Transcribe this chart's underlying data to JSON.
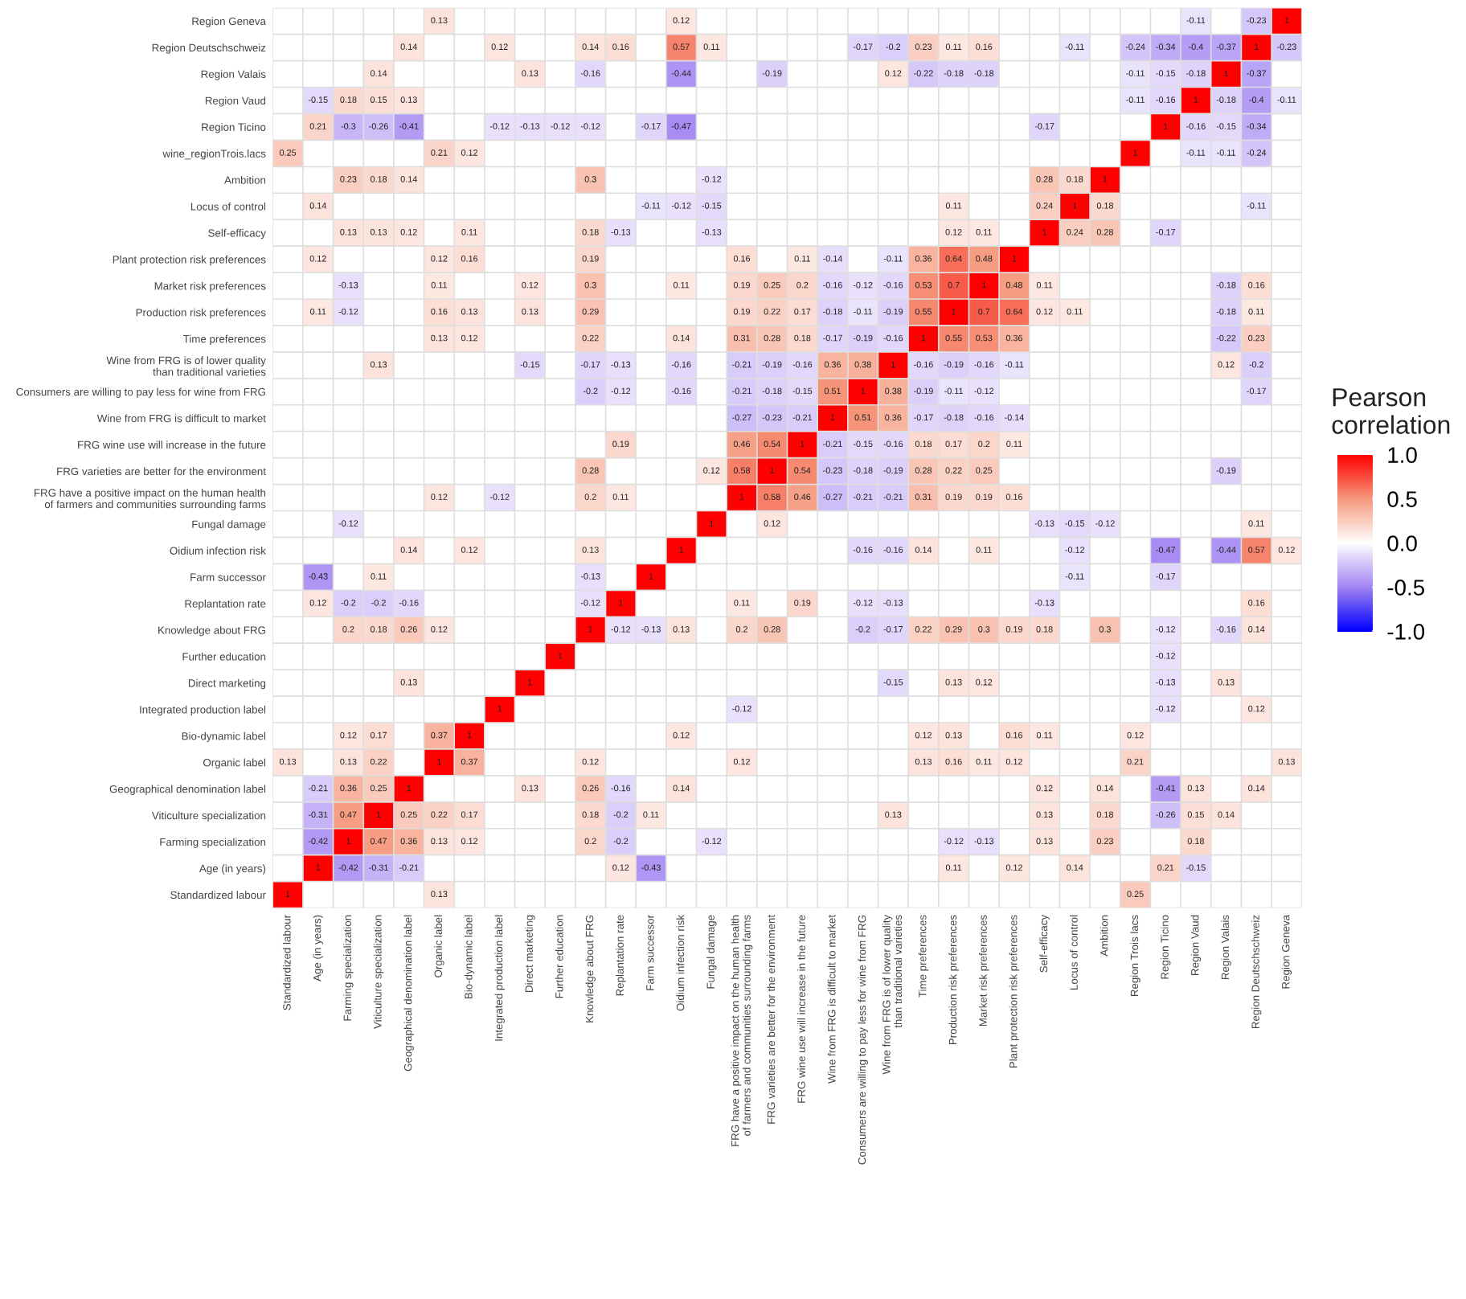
{
  "chart_data": {
    "type": "heatmap",
    "categories": [
      "Standardized labour",
      "Age (in years)",
      "Farming specialization",
      "Viticulture specialization",
      "Geographical denomination label",
      "Organic label",
      "Bio-dynamic label",
      "Integrated production label",
      "Direct marketing",
      "Further education",
      "Knowledge about FRG",
      "Replantation rate",
      "Farm successor",
      "Oidium infection risk",
      "Fungal damage",
      "FRG have a positive impact on the human health\nof farmers and communities surrounding farms",
      "FRG varieties are better for the environment",
      "FRG wine use will increase in the future",
      "Wine from FRG is difficult to market",
      "Consumers are willing to pay less for wine from FRG",
      "Wine from FRG is of lower quality\nthan traditional varieties",
      "Time preferences",
      "Production risk preferences",
      "Market risk preferences",
      "Plant protection risk preferences",
      "Self-efficacy",
      "Locus of control",
      "Ambition",
      "Region Trois lacs",
      "Region Ticino",
      "Region Vaud",
      "Region Valais",
      "Region Deutschschweiz",
      "Region Geneva"
    ],
    "y_categories": [
      "Region Geneva",
      "Region Deutschschweiz",
      "Region Valais",
      "Region Vaud",
      "Region Ticino",
      "wine_regionTrois.lacs",
      "Ambition",
      "Locus of control",
      "Self-efficacy",
      "Plant protection risk preferences",
      "Market risk preferences",
      "Production risk preferences",
      "Time preferences",
      "Wine from FRG is of lower quality\nthan traditional varieties",
      "Consumers are willing to pay less for wine from FRG",
      "Wine from FRG is difficult to market",
      "FRG wine use will increase in the future",
      "FRG varieties are better for the environment",
      "FRG have a positive impact on the human health\nof farmers and communities surrounding farms",
      "Fungal damage",
      "Oidium infection risk",
      "Farm successor",
      "Replantation rate",
      "Knowledge about FRG",
      "Further education",
      "Direct marketing",
      "Integrated production label",
      "Bio-dynamic label",
      "Organic label",
      "Geographical denomination label",
      "Viticulture specialization",
      "Farming specialization",
      "Age (in years)",
      "Standardized labour"
    ],
    "cells": [
      [
        null,
        null,
        null,
        null,
        null,
        0.13,
        null,
        null,
        null,
        null,
        null,
        null,
        null,
        0.12,
        null,
        null,
        null,
        null,
        null,
        null,
        null,
        null,
        null,
        null,
        null,
        null,
        null,
        null,
        null,
        null,
        -0.11,
        null,
        -0.23,
        1
      ],
      [
        null,
        null,
        null,
        null,
        0.14,
        null,
        null,
        0.12,
        null,
        null,
        0.14,
        0.16,
        null,
        0.57,
        0.11,
        null,
        null,
        null,
        null,
        -0.17,
        -0.2,
        0.23,
        0.11,
        0.16,
        null,
        null,
        -0.11,
        null,
        -0.24,
        -0.34,
        -0.4,
        -0.37,
        1,
        -0.23
      ],
      [
        null,
        null,
        null,
        0.14,
        null,
        null,
        null,
        null,
        0.13,
        null,
        -0.16,
        null,
        null,
        -0.44,
        null,
        null,
        -0.19,
        null,
        null,
        null,
        0.12,
        -0.22,
        -0.18,
        -0.18,
        null,
        null,
        null,
        null,
        -0.11,
        -0.15,
        -0.18,
        1,
        -0.37,
        null
      ],
      [
        null,
        -0.15,
        0.18,
        0.15,
        0.13,
        null,
        null,
        null,
        null,
        null,
        null,
        null,
        null,
        null,
        null,
        null,
        null,
        null,
        null,
        null,
        null,
        null,
        null,
        null,
        null,
        null,
        null,
        null,
        -0.11,
        -0.16,
        1,
        -0.18,
        -0.4,
        -0.11
      ],
      [
        null,
        0.21,
        -0.3,
        -0.26,
        -0.41,
        null,
        null,
        -0.12,
        -0.13,
        -0.12,
        -0.12,
        null,
        -0.17,
        -0.47,
        null,
        null,
        null,
        null,
        null,
        null,
        null,
        null,
        null,
        null,
        null,
        -0.17,
        null,
        null,
        null,
        1,
        -0.16,
        -0.15,
        -0.34,
        null
      ],
      [
        0.25,
        null,
        null,
        null,
        null,
        0.21,
        0.12,
        null,
        null,
        null,
        null,
        null,
        null,
        null,
        null,
        null,
        null,
        null,
        null,
        null,
        null,
        null,
        null,
        null,
        null,
        null,
        null,
        null,
        1,
        null,
        -0.11,
        -0.11,
        -0.24,
        null
      ],
      [
        null,
        null,
        0.23,
        0.18,
        0.14,
        null,
        null,
        null,
        null,
        null,
        0.3,
        null,
        null,
        null,
        -0.12,
        null,
        null,
        null,
        null,
        null,
        null,
        null,
        null,
        null,
        null,
        0.28,
        0.18,
        1,
        null,
        null,
        null,
        null,
        null,
        null
      ],
      [
        null,
        0.14,
        null,
        null,
        null,
        null,
        null,
        null,
        null,
        null,
        null,
        null,
        -0.11,
        -0.12,
        -0.15,
        null,
        null,
        null,
        null,
        null,
        null,
        null,
        0.11,
        null,
        null,
        0.24,
        1,
        0.18,
        null,
        null,
        null,
        null,
        -0.11,
        null
      ],
      [
        null,
        null,
        0.13,
        0.13,
        0.12,
        null,
        0.11,
        null,
        null,
        null,
        0.18,
        -0.13,
        null,
        null,
        -0.13,
        null,
        null,
        null,
        null,
        null,
        null,
        null,
        0.12,
        0.11,
        null,
        1,
        0.24,
        0.28,
        null,
        -0.17,
        null,
        null,
        null,
        null
      ],
      [
        null,
        0.12,
        null,
        null,
        null,
        0.12,
        0.16,
        null,
        null,
        null,
        0.19,
        null,
        null,
        null,
        null,
        0.16,
        null,
        0.11,
        -0.14,
        null,
        -0.11,
        0.36,
        0.64,
        0.48,
        1,
        null,
        null,
        null,
        null,
        null,
        null,
        null,
        null,
        null
      ],
      [
        null,
        null,
        -0.13,
        null,
        null,
        0.11,
        null,
        null,
        0.12,
        null,
        0.3,
        null,
        null,
        0.11,
        null,
        0.19,
        0.25,
        0.2,
        -0.16,
        -0.12,
        -0.16,
        0.53,
        0.7,
        1,
        0.48,
        0.11,
        null,
        null,
        null,
        null,
        null,
        -0.18,
        0.16,
        null
      ],
      [
        null,
        0.11,
        -0.12,
        null,
        null,
        0.16,
        0.13,
        null,
        0.13,
        null,
        0.29,
        null,
        null,
        null,
        null,
        0.19,
        0.22,
        0.17,
        -0.18,
        -0.11,
        -0.19,
        0.55,
        1,
        0.7,
        0.64,
        0.12,
        0.11,
        null,
        null,
        null,
        null,
        -0.18,
        0.11,
        null
      ],
      [
        null,
        null,
        null,
        null,
        null,
        0.13,
        0.12,
        null,
        null,
        null,
        0.22,
        null,
        null,
        0.14,
        null,
        0.31,
        0.28,
        0.18,
        -0.17,
        -0.19,
        -0.16,
        1,
        0.55,
        0.53,
        0.36,
        null,
        null,
        null,
        null,
        null,
        null,
        -0.22,
        0.23,
        null
      ],
      [
        null,
        null,
        null,
        0.13,
        null,
        null,
        null,
        null,
        -0.15,
        null,
        -0.17,
        -0.13,
        null,
        -0.16,
        null,
        -0.21,
        -0.19,
        -0.16,
        0.36,
        0.38,
        1,
        -0.16,
        -0.19,
        -0.16,
        -0.11,
        null,
        null,
        null,
        null,
        null,
        null,
        0.12,
        -0.2,
        null
      ],
      [
        null,
        null,
        null,
        null,
        null,
        null,
        null,
        null,
        null,
        null,
        -0.2,
        -0.12,
        null,
        -0.16,
        null,
        -0.21,
        -0.18,
        -0.15,
        0.51,
        1,
        0.38,
        -0.19,
        -0.11,
        -0.12,
        null,
        null,
        null,
        null,
        null,
        null,
        null,
        null,
        -0.17,
        null
      ],
      [
        null,
        null,
        null,
        null,
        null,
        null,
        null,
        null,
        null,
        null,
        null,
        null,
        null,
        null,
        null,
        -0.27,
        -0.23,
        -0.21,
        1,
        0.51,
        0.36,
        -0.17,
        -0.18,
        -0.16,
        -0.14,
        null,
        null,
        null,
        null,
        null,
        null,
        null,
        null,
        null
      ],
      [
        null,
        null,
        null,
        null,
        null,
        null,
        null,
        null,
        null,
        null,
        null,
        0.19,
        null,
        null,
        null,
        0.46,
        0.54,
        1,
        -0.21,
        -0.15,
        -0.16,
        0.18,
        0.17,
        0.2,
        0.11,
        null,
        null,
        null,
        null,
        null,
        null,
        null,
        null,
        null
      ],
      [
        null,
        null,
        null,
        null,
        null,
        null,
        null,
        null,
        null,
        null,
        0.28,
        null,
        null,
        null,
        0.12,
        0.58,
        1,
        0.54,
        -0.23,
        -0.18,
        -0.19,
        0.28,
        0.22,
        0.25,
        null,
        null,
        null,
        null,
        null,
        null,
        null,
        -0.19,
        null,
        null
      ],
      [
        null,
        null,
        null,
        null,
        null,
        0.12,
        null,
        -0.12,
        null,
        null,
        0.2,
        0.11,
        null,
        null,
        null,
        1,
        0.58,
        0.46,
        -0.27,
        -0.21,
        -0.21,
        0.31,
        0.19,
        0.19,
        0.16,
        null,
        null,
        null,
        null,
        null,
        null,
        null,
        null,
        null
      ],
      [
        null,
        null,
        -0.12,
        null,
        null,
        null,
        null,
        null,
        null,
        null,
        null,
        null,
        null,
        null,
        1,
        null,
        0.12,
        null,
        null,
        null,
        null,
        null,
        null,
        null,
        null,
        -0.13,
        -0.15,
        -0.12,
        null,
        null,
        null,
        null,
        0.11,
        null
      ],
      [
        null,
        null,
        null,
        null,
        0.14,
        null,
        0.12,
        null,
        null,
        null,
        0.13,
        null,
        null,
        1,
        null,
        null,
        null,
        null,
        null,
        -0.16,
        -0.16,
        0.14,
        null,
        0.11,
        null,
        null,
        -0.12,
        null,
        null,
        -0.47,
        null,
        -0.44,
        0.57,
        0.12
      ],
      [
        null,
        -0.43,
        null,
        0.11,
        null,
        null,
        null,
        null,
        null,
        null,
        -0.13,
        null,
        1,
        null,
        null,
        null,
        null,
        null,
        null,
        null,
        null,
        null,
        null,
        null,
        null,
        null,
        -0.11,
        null,
        null,
        -0.17,
        null,
        null,
        null,
        null
      ],
      [
        null,
        0.12,
        -0.2,
        -0.2,
        -0.16,
        null,
        null,
        null,
        null,
        null,
        -0.12,
        1,
        null,
        null,
        null,
        0.11,
        null,
        0.19,
        null,
        -0.12,
        -0.13,
        null,
        null,
        null,
        null,
        -0.13,
        null,
        null,
        null,
        null,
        null,
        null,
        0.16,
        null
      ],
      [
        null,
        null,
        0.2,
        0.18,
        0.26,
        0.12,
        null,
        null,
        null,
        null,
        1,
        -0.12,
        -0.13,
        0.13,
        null,
        0.2,
        0.28,
        null,
        null,
        -0.2,
        -0.17,
        0.22,
        0.29,
        0.3,
        0.19,
        0.18,
        null,
        0.3,
        null,
        -0.12,
        null,
        -0.16,
        0.14,
        null
      ],
      [
        null,
        null,
        null,
        null,
        null,
        null,
        null,
        null,
        null,
        1,
        null,
        null,
        null,
        null,
        null,
        null,
        null,
        null,
        null,
        null,
        null,
        null,
        null,
        null,
        null,
        null,
        null,
        null,
        null,
        -0.12,
        null,
        null,
        null,
        null
      ],
      [
        null,
        null,
        null,
        null,
        0.13,
        null,
        null,
        null,
        1,
        null,
        null,
        null,
        null,
        null,
        null,
        null,
        null,
        null,
        null,
        null,
        -0.15,
        null,
        0.13,
        0.12,
        null,
        null,
        null,
        null,
        null,
        -0.13,
        null,
        0.13,
        null,
        null
      ],
      [
        null,
        null,
        null,
        null,
        null,
        null,
        null,
        1,
        null,
        null,
        null,
        null,
        null,
        null,
        null,
        -0.12,
        null,
        null,
        null,
        null,
        null,
        null,
        null,
        null,
        null,
        null,
        null,
        null,
        null,
        -0.12,
        null,
        null,
        0.12,
        null
      ],
      [
        null,
        null,
        0.12,
        0.17,
        null,
        0.37,
        1,
        null,
        null,
        null,
        null,
        null,
        null,
        0.12,
        null,
        null,
        null,
        null,
        null,
        null,
        null,
        0.12,
        0.13,
        null,
        0.16,
        0.11,
        null,
        null,
        0.12,
        null,
        null,
        null,
        null,
        null
      ],
      [
        0.13,
        null,
        0.13,
        0.22,
        null,
        1,
        0.37,
        null,
        null,
        null,
        0.12,
        null,
        null,
        null,
        null,
        0.12,
        null,
        null,
        null,
        null,
        null,
        0.13,
        0.16,
        0.11,
        0.12,
        null,
        null,
        null,
        0.21,
        null,
        null,
        null,
        null,
        0.13
      ],
      [
        null,
        -0.21,
        0.36,
        0.25,
        1,
        null,
        null,
        null,
        0.13,
        null,
        0.26,
        -0.16,
        null,
        0.14,
        null,
        null,
        null,
        null,
        null,
        null,
        null,
        null,
        null,
        null,
        null,
        0.12,
        null,
        0.14,
        null,
        -0.41,
        0.13,
        null,
        0.14,
        null
      ],
      [
        null,
        -0.31,
        0.47,
        1,
        0.25,
        0.22,
        0.17,
        null,
        null,
        null,
        0.18,
        -0.2,
        0.11,
        null,
        null,
        null,
        null,
        null,
        null,
        null,
        0.13,
        null,
        null,
        null,
        null,
        0.13,
        null,
        0.18,
        null,
        -0.26,
        0.15,
        0.14,
        null,
        null
      ],
      [
        null,
        -0.42,
        1,
        0.47,
        0.36,
        0.13,
        0.12,
        null,
        null,
        null,
        0.2,
        -0.2,
        null,
        null,
        -0.12,
        null,
        null,
        null,
        null,
        null,
        null,
        null,
        -0.12,
        -0.13,
        null,
        0.13,
        null,
        0.23,
        null,
        null,
        0.18,
        null,
        null,
        null
      ],
      [
        null,
        1,
        -0.42,
        -0.31,
        -0.21,
        null,
        null,
        null,
        null,
        null,
        null,
        0.12,
        -0.43,
        null,
        null,
        null,
        null,
        null,
        null,
        null,
        null,
        null,
        0.11,
        null,
        0.12,
        null,
        0.14,
        null,
        null,
        0.21,
        -0.15,
        null,
        null,
        null
      ],
      [
        1,
        null,
        null,
        null,
        null,
        0.13,
        null,
        null,
        null,
        null,
        null,
        null,
        null,
        null,
        null,
        null,
        null,
        null,
        null,
        null,
        null,
        null,
        null,
        null,
        null,
        null,
        null,
        null,
        0.25,
        null,
        null,
        null,
        null,
        null
      ]
    ],
    "clim": [
      -1.0,
      1.0
    ],
    "cticks": [
      {
        "value": -1.0,
        "label": "-1.0"
      },
      {
        "value": -0.5,
        "label": "-0.5"
      },
      {
        "value": 0.0,
        "label": "0.0"
      },
      {
        "value": 0.5,
        "label": "0.5"
      },
      {
        "value": 1.0,
        "label": "1.0"
      }
    ],
    "clabel": "Pearson\ncorrelation",
    "data_labels": true,
    "grid": true
  }
}
